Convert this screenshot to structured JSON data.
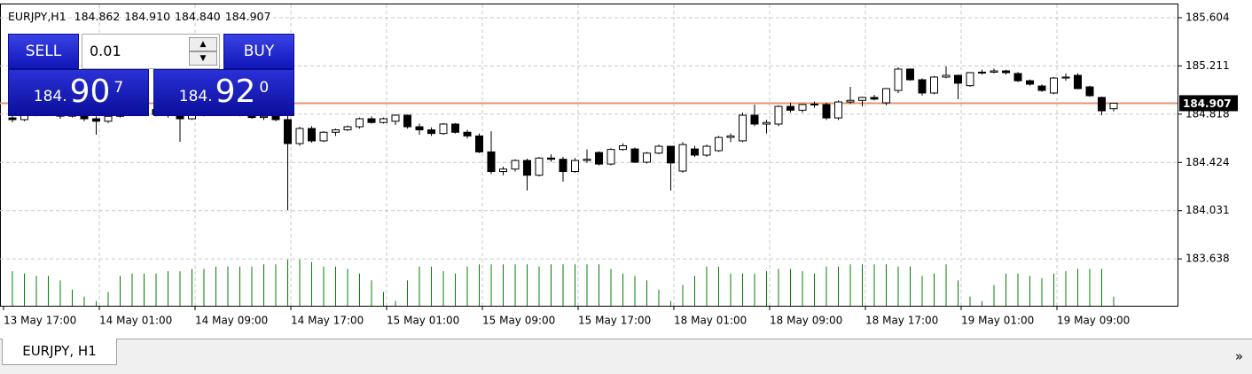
{
  "chart_data": {
    "type": "candlestick",
    "symbol": "EURJPY,H1",
    "header_ohlc": [
      "184.862",
      "184.910",
      "184.840",
      "184.907"
    ],
    "categories": [
      "13 May 17:00",
      null,
      null,
      null,
      null,
      null,
      null,
      null,
      "14 May 01:00",
      null,
      null,
      null,
      null,
      null,
      null,
      null,
      "14 May 09:00",
      null,
      null,
      null,
      null,
      null,
      null,
      null,
      "14 May 17:00",
      null,
      null,
      null,
      null,
      null,
      null,
      null,
      "15 May 01:00",
      null,
      null,
      null,
      null,
      null,
      null,
      null,
      "15 May 09:00",
      null,
      null,
      null,
      null,
      null,
      null,
      null,
      "15 May 17:00",
      null,
      null,
      null,
      null,
      null,
      null,
      null,
      "18 May 01:00",
      null,
      null,
      null,
      null,
      null,
      null,
      null,
      "18 May 09:00",
      null,
      null,
      null,
      null,
      null,
      null,
      null,
      "18 May 17:00",
      null,
      null,
      null,
      null,
      null,
      null,
      null,
      "19 May 01:00",
      null,
      null,
      null,
      null,
      null,
      null,
      null,
      "19 May 09:00",
      null,
      null,
      null,
      null
    ],
    "open": [
      184.787,
      184.773,
      184.823,
      184.845,
      184.83,
      184.801,
      184.83,
      184.78,
      184.76,
      184.8,
      184.85,
      184.87,
      184.855,
      184.815,
      184.825,
      184.78,
      184.81,
      184.84,
      184.86,
      184.845,
      184.82,
      184.79,
      184.8,
      184.773,
      184.578,
      184.701,
      184.6,
      184.67,
      184.69,
      184.715,
      184.78,
      184.75,
      184.76,
      184.809,
      184.715,
      184.69,
      184.66,
      184.737,
      184.67,
      184.64,
      184.51,
      184.35,
      184.37,
      184.44,
      184.32,
      184.46,
      184.45,
      184.35,
      184.44,
      184.505,
      184.411,
      184.53,
      184.534,
      184.426,
      184.5,
      184.556,
      184.354,
      184.534,
      184.484,
      184.52,
      184.628,
      184.6,
      184.809,
      184.737,
      184.737,
      184.881,
      184.85,
      184.896,
      184.896,
      184.787,
      184.917,
      184.93,
      184.954,
      184.91,
      185.011,
      185.185,
      185.098,
      184.99,
      185.12,
      185.134,
      185.05,
      185.156,
      185.16,
      185.17,
      185.149,
      185.09,
      185.047,
      184.99,
      185.112,
      185.134,
      185.04,
      184.954,
      184.862
    ],
    "high": [
      184.801,
      184.83,
      184.86,
      184.87,
      184.845,
      184.84,
      184.85,
      184.8,
      184.81,
      184.86,
      184.88,
      184.89,
      184.87,
      184.84,
      184.85,
      184.82,
      184.85,
      184.87,
      184.88,
      184.86,
      184.835,
      184.81,
      184.815,
      184.823,
      184.715,
      184.72,
      184.68,
      184.7,
      184.725,
      184.79,
      184.8,
      184.79,
      184.815,
      184.815,
      184.74,
      184.71,
      184.745,
      184.745,
      184.69,
      184.66,
      184.679,
      184.39,
      184.45,
      184.455,
      184.47,
      184.49,
      184.47,
      184.46,
      184.53,
      184.515,
      184.54,
      184.58,
      184.545,
      184.51,
      184.57,
      184.56,
      184.59,
      184.56,
      184.57,
      184.64,
      184.66,
      184.83,
      184.896,
      184.77,
      184.89,
      184.91,
      184.9,
      184.92,
      184.91,
      184.93,
      185.04,
      184.96,
      184.975,
      185.03,
      185.2,
      185.19,
      185.11,
      185.13,
      185.206,
      185.14,
      185.16,
      185.18,
      185.19,
      185.18,
      185.16,
      185.1,
      185.06,
      185.12,
      185.15,
      185.15,
      185.05,
      184.96,
      184.91
    ],
    "low": [
      184.751,
      184.76,
      184.8,
      184.81,
      184.78,
      184.79,
      184.76,
      184.65,
      184.745,
      184.79,
      184.83,
      184.84,
      184.8,
      184.79,
      184.592,
      184.77,
      184.8,
      184.82,
      184.83,
      184.8,
      184.78,
      184.77,
      184.76,
      184.036,
      184.56,
      184.585,
      184.59,
      184.64,
      184.68,
      184.7,
      184.74,
      184.74,
      184.73,
      184.7,
      184.65,
      184.64,
      184.65,
      184.66,
      184.62,
      184.5,
      184.33,
      184.32,
      184.35,
      184.195,
      184.31,
      184.43,
      184.267,
      184.34,
      184.42,
      184.4,
      184.4,
      184.52,
      184.42,
      184.415,
      184.49,
      184.195,
      184.34,
      184.47,
      184.47,
      184.51,
      184.59,
      184.59,
      184.72,
      184.66,
      184.72,
      184.83,
      184.83,
      184.87,
      184.77,
      184.77,
      184.9,
      184.88,
      184.93,
      184.89,
      184.99,
      185.09,
      184.97,
      184.98,
      185.11,
      184.939,
      185.04,
      185.14,
      185.15,
      185.14,
      185.08,
      185.05,
      185.0,
      184.98,
      185.09,
      185.02,
      184.96,
      184.809,
      184.84
    ],
    "close": [
      184.773,
      184.823,
      184.845,
      184.83,
      184.801,
      184.83,
      184.78,
      184.76,
      184.8,
      184.85,
      184.87,
      184.855,
      184.815,
      184.825,
      184.78,
      184.81,
      184.84,
      184.86,
      184.845,
      184.82,
      184.79,
      184.8,
      184.773,
      184.578,
      184.701,
      184.6,
      184.67,
      184.69,
      184.715,
      184.78,
      184.75,
      184.78,
      184.809,
      184.715,
      184.69,
      184.66,
      184.737,
      184.67,
      184.64,
      184.51,
      184.35,
      184.37,
      184.44,
      184.32,
      184.46,
      184.45,
      184.35,
      184.44,
      184.45,
      184.411,
      184.53,
      184.56,
      184.426,
      184.5,
      184.556,
      184.42,
      184.57,
      184.484,
      184.556,
      184.628,
      184.64,
      184.809,
      184.737,
      184.75,
      184.881,
      184.85,
      184.896,
      184.9,
      184.787,
      184.917,
      184.93,
      184.954,
      184.94,
      185.026,
      185.185,
      185.098,
      184.99,
      185.12,
      185.134,
      185.07,
      185.156,
      185.16,
      185.17,
      185.156,
      185.09,
      185.062,
      185.011,
      185.112,
      185.12,
      185.026,
      184.968,
      184.845,
      184.907
    ],
    "volumes": [
      1500,
      1400,
      1300,
      1300,
      1100,
      700,
      400,
      200,
      600,
      1300,
      1400,
      1400,
      1400,
      1500,
      1500,
      1600,
      1600,
      1700,
      1700,
      1700,
      1700,
      1800,
      1800,
      2000,
      2000,
      1900,
      1700,
      1700,
      1600,
      1400,
      1100,
      600,
      200,
      1100,
      1700,
      1700,
      1500,
      1400,
      1700,
      1800,
      1800,
      1800,
      1800,
      1800,
      1700,
      1800,
      1800,
      1800,
      1800,
      1800,
      1600,
      1400,
      1300,
      1100,
      700,
      200,
      900,
      1300,
      1700,
      1700,
      1400,
      1400,
      1400,
      1500,
      1600,
      1600,
      1500,
      1400,
      1700,
      1700,
      1800,
      1800,
      1800,
      1800,
      1700,
      1700,
      1300,
      1400,
      1800,
      1100,
      400,
      200,
      900,
      1400,
      1400,
      1300,
      1200,
      1400,
      1500,
      1600,
      1600,
      1600,
      400
    ],
    "volume_color": "#008000",
    "up_color": "#ffffff",
    "down_color": "#000000",
    "ylim": [
      183.256,
      185.712
    ],
    "yticks": [
      185.604,
      185.211,
      {
        "value": 184.818,
        "label": "184.818"
      },
      184.424,
      184.031,
      183.638
    ],
    "grid": true,
    "current_price": 184.907,
    "current_price_color": "#e8956f"
  },
  "trade_panel": {
    "sell_label": "SELL",
    "buy_label": "BUY",
    "lot": "0.01",
    "sell_price": {
      "small": "184.",
      "big": "90",
      "pip": "7"
    },
    "buy_price": {
      "small": "184.",
      "big": "92",
      "pip": "0"
    }
  },
  "tab": {
    "label": "EURJPY, H1",
    "more": "»"
  }
}
